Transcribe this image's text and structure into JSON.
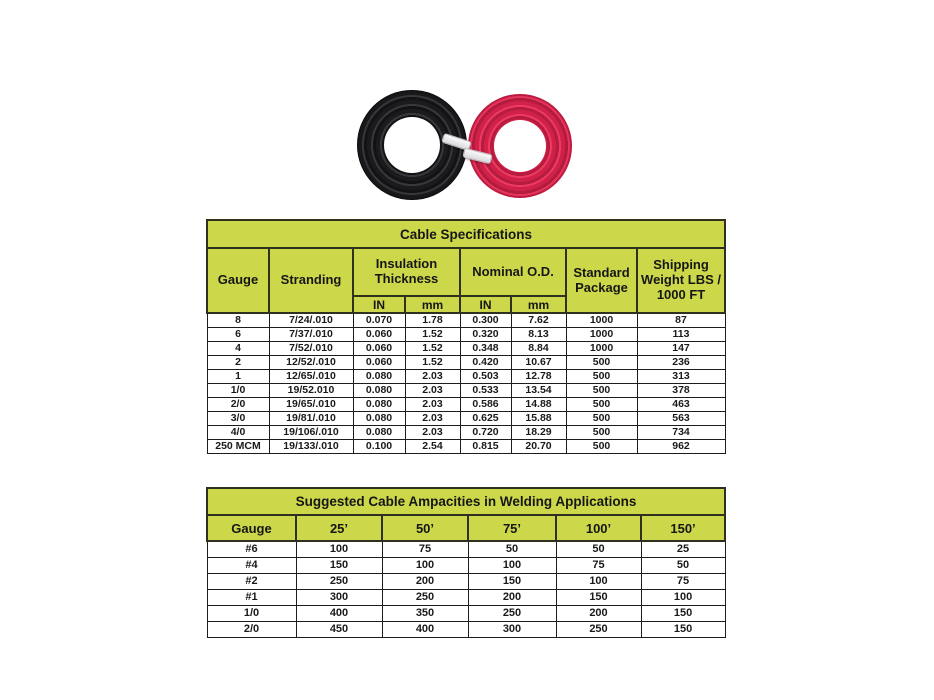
{
  "colors": {
    "header_green": "#ccd84a",
    "table_border": "#30301f",
    "cell_border": "#1c1c1c",
    "cable_black": "#1b1b1e",
    "cable_red": "#cf2149"
  },
  "product_image": {
    "description": "black-and-red-welding-cable-coils"
  },
  "spec_table": {
    "title": "Cable Specifications",
    "header": {
      "gauge": "Gauge",
      "stranding": "Stranding",
      "insulation": "Insulation Thickness",
      "nominal": "Nominal O.D.",
      "standard": "Standard Package",
      "shipping": "Shipping Weight LBS / 1000 FT",
      "in1": "IN",
      "mm1": "mm",
      "in2": "IN",
      "mm2": "mm"
    },
    "rows": [
      [
        "8",
        "7/24/.010",
        "0.070",
        "1.78",
        "0.300",
        "7.62",
        "1000",
        "87"
      ],
      [
        "6",
        "7/37/.010",
        "0.060",
        "1.52",
        "0.320",
        "8.13",
        "1000",
        "113"
      ],
      [
        "4",
        "7/52/.010",
        "0.060",
        "1.52",
        "0.348",
        "8.84",
        "1000",
        "147"
      ],
      [
        "2",
        "12/52/.010",
        "0.060",
        "1.52",
        "0.420",
        "10.67",
        "500",
        "236"
      ],
      [
        "1",
        "12/65/.010",
        "0.080",
        "2.03",
        "0.503",
        "12.78",
        "500",
        "313"
      ],
      [
        "1/0",
        "19/52.010",
        "0.080",
        "2.03",
        "0.533",
        "13.54",
        "500",
        "378"
      ],
      [
        "2/0",
        "19/65/.010",
        "0.080",
        "2.03",
        "0.586",
        "14.88",
        "500",
        "463"
      ],
      [
        "3/0",
        "19/81/.010",
        "0.080",
        "2.03",
        "0.625",
        "15.88",
        "500",
        "563"
      ],
      [
        "4/0",
        "19/106/.010",
        "0.080",
        "2.03",
        "0.720",
        "18.29",
        "500",
        "734"
      ],
      [
        "250 MCM",
        "19/133/.010",
        "0.100",
        "2.54",
        "0.815",
        "20.70",
        "500",
        "962"
      ]
    ]
  },
  "ampacity_table": {
    "title": "Suggested Cable Ampacities in Welding Applications",
    "columns": [
      "Gauge",
      "25’",
      "50’",
      "75’",
      "100’",
      "150’"
    ],
    "rows": [
      [
        "#6",
        "100",
        "75",
        "50",
        "50",
        "25"
      ],
      [
        "#4",
        "150",
        "100",
        "100",
        "75",
        "50"
      ],
      [
        "#2",
        "250",
        "200",
        "150",
        "100",
        "75"
      ],
      [
        "#1",
        "300",
        "250",
        "200",
        "150",
        "100"
      ],
      [
        "1/0",
        "400",
        "350",
        "250",
        "200",
        "150"
      ],
      [
        "2/0",
        "450",
        "400",
        "300",
        "250",
        "150"
      ]
    ]
  }
}
